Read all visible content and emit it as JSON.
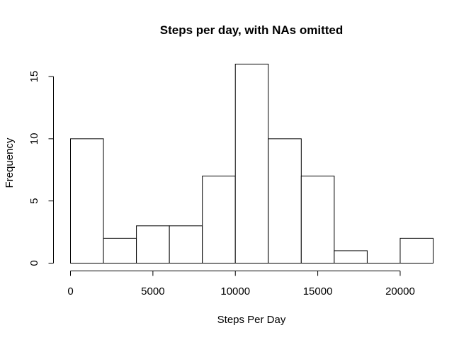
{
  "chart_data": {
    "type": "bar",
    "title": "Steps per day, with NAs omitted",
    "xlabel": "Steps Per Day",
    "ylabel": "Frequency",
    "bins": [
      {
        "start": 0,
        "end": 2000,
        "count": 10
      },
      {
        "start": 2000,
        "end": 4000,
        "count": 2
      },
      {
        "start": 4000,
        "end": 6000,
        "count": 3
      },
      {
        "start": 6000,
        "end": 8000,
        "count": 3
      },
      {
        "start": 8000,
        "end": 10000,
        "count": 7
      },
      {
        "start": 10000,
        "end": 12000,
        "count": 16
      },
      {
        "start": 12000,
        "end": 14000,
        "count": 10
      },
      {
        "start": 14000,
        "end": 16000,
        "count": 7
      },
      {
        "start": 16000,
        "end": 18000,
        "count": 1
      },
      {
        "start": 18000,
        "end": 20000,
        "count": 0
      },
      {
        "start": 20000,
        "end": 22000,
        "count": 2
      }
    ],
    "xlim": [
      0,
      22000
    ],
    "ylim": [
      0,
      16
    ],
    "x_ticks": [
      0,
      5000,
      10000,
      15000,
      20000
    ],
    "x_tick_labels": [
      "0",
      "5000",
      "10000",
      "15000",
      "20000"
    ],
    "y_ticks": [
      0,
      5,
      10,
      15
    ],
    "y_tick_labels": [
      "0",
      "5",
      "10",
      "15"
    ],
    "grid": false,
    "legend": "none"
  }
}
